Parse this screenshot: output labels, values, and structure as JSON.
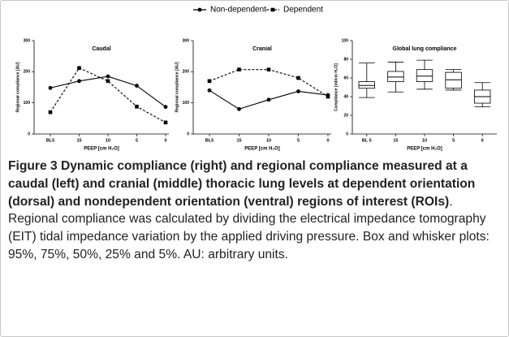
{
  "chart_data": [
    {
      "type": "line",
      "title": "Caudal",
      "xlabel": "PEEP [cm H₂O]",
      "ylabel": "Regional compliance [AU]",
      "categories": [
        "BL5",
        "15",
        "10",
        "5",
        "0"
      ],
      "ylim": [
        0,
        300
      ],
      "yticks": [
        0,
        100,
        200,
        300
      ],
      "series": [
        {
          "name": "Non-dependent",
          "color": "#000000",
          "line_style": "solid",
          "marker": "circle",
          "values": [
            148,
            170,
            185,
            155,
            87
          ]
        },
        {
          "name": "Dependent",
          "color": "#000000",
          "line_style": "dashed",
          "marker": "square",
          "values": [
            70,
            212,
            170,
            88,
            37
          ]
        }
      ]
    },
    {
      "type": "line",
      "title": "Cranial",
      "xlabel": "PEEP [cm H₂O]",
      "ylabel": "Regional compliance [AU]",
      "categories": [
        "BL5",
        "15",
        "10",
        "5",
        "0"
      ],
      "ylim": [
        0,
        300
      ],
      "yticks": [
        0,
        100,
        200,
        300
      ],
      "series": [
        {
          "name": "Non-dependent",
          "color": "#000000",
          "line_style": "solid",
          "marker": "circle",
          "values": [
            140,
            80,
            110,
            137,
            125
          ]
        },
        {
          "name": "Dependent",
          "color": "#000000",
          "line_style": "dashed",
          "marker": "square",
          "values": [
            170,
            207,
            207,
            180,
            120
          ]
        }
      ]
    },
    {
      "type": "box",
      "title": "Global lung compliance",
      "xlabel": "PEEP [cm H₂O]",
      "ylabel": "Compliance [ml/cm H₂O]",
      "categories": [
        "BL 5",
        "15",
        "10",
        "5",
        "0"
      ],
      "ylim": [
        0,
        100
      ],
      "yticks": [
        0,
        20,
        40,
        60,
        80,
        100
      ],
      "boxes": [
        {
          "min": 39,
          "q1": 49,
          "median": 52,
          "q3": 56,
          "max": 76
        },
        {
          "min": 45,
          "q1": 56,
          "median": 61,
          "q3": 67,
          "max": 77
        },
        {
          "min": 48,
          "q1": 56,
          "median": 62,
          "q3": 69,
          "max": 79
        },
        {
          "min": 47,
          "q1": 49,
          "median": 58,
          "q3": 66,
          "max": 69
        },
        {
          "min": 29,
          "q1": 33,
          "median": 40,
          "q3": 47,
          "max": 55
        }
      ]
    }
  ],
  "caption": {
    "label": "Figure 3",
    "title": "Dynamic compliance (right) and regional compliance measured at a caudal (left) and cranial (middle) thoracic lung levels at dependent orientation (dorsal) and nondependent orientation (ventral) regions of interest (ROIs)",
    "text": ". Regional compliance was calculated by dividing the electrical impedance tomography (EIT) tidal impedance variation by the applied driving pressure. Box and whisker plots: 95%, 75%, 50%, 25% and 5%. AU: arbitrary units."
  }
}
